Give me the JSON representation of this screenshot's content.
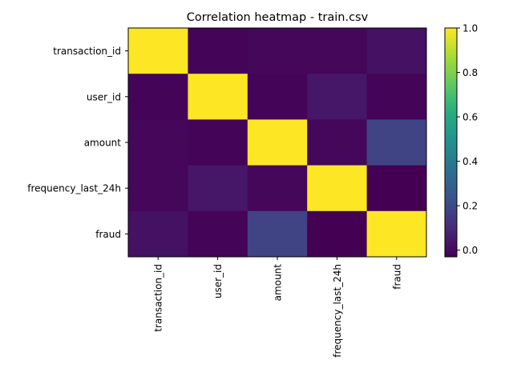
{
  "chart_data": {
    "type": "heatmap",
    "title": "Correlation heatmap - train.csv",
    "xlabel": "",
    "ylabel": "",
    "x_categories": [
      "transaction_id",
      "user_id",
      "amount",
      "frequency_last_24h",
      "fraud"
    ],
    "y_categories": [
      "transaction_id",
      "user_id",
      "amount",
      "frequency_last_24h",
      "fraud"
    ],
    "values": [
      [
        1.0,
        -0.02,
        -0.01,
        -0.01,
        0.02
      ],
      [
        -0.02,
        1.0,
        -0.02,
        0.04,
        -0.02
      ],
      [
        -0.01,
        -0.02,
        1.0,
        -0.01,
        0.18
      ],
      [
        -0.01,
        0.04,
        -0.01,
        1.0,
        -0.03
      ],
      [
        0.02,
        -0.02,
        0.18,
        -0.03,
        1.0
      ]
    ],
    "colormap": "viridis",
    "colorbar": {
      "range": [
        -0.03,
        1.0
      ],
      "ticks": [
        0.0,
        0.2,
        0.4,
        0.6,
        0.8,
        1.0
      ],
      "tick_labels": [
        "0.0",
        "0.2",
        "0.4",
        "0.6",
        "0.8",
        "1.0"
      ]
    },
    "grid": false
  }
}
